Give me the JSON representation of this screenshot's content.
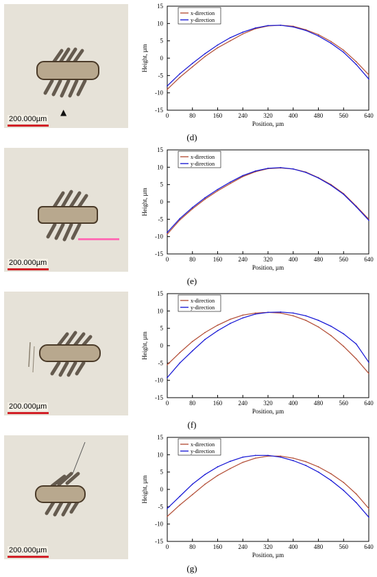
{
  "scale_label": "200.000µm",
  "chart_data": [
    {
      "type": "line",
      "panel": "(d)",
      "xlabel": "Position, µm",
      "ylabel": "Height, µm",
      "xlim": [
        0,
        640
      ],
      "ylim": [
        -15,
        15
      ],
      "xticks": [
        0,
        80,
        160,
        240,
        320,
        400,
        480,
        560,
        640
      ],
      "yticks": [
        15,
        10,
        5,
        0,
        -5,
        -10,
        -15
      ],
      "legend": "top-left",
      "series": [
        {
          "name": "x-direction",
          "color": "#b5533c",
          "x": [
            0,
            40,
            80,
            120,
            160,
            200,
            240,
            280,
            320,
            360,
            400,
            440,
            480,
            520,
            560,
            600,
            640
          ],
          "y": [
            -9.0,
            -5.5,
            -2.5,
            0.5,
            3.0,
            5.0,
            7.0,
            8.5,
            9.3,
            9.5,
            9.2,
            8.2,
            6.8,
            4.8,
            2.3,
            -1.0,
            -4.8
          ]
        },
        {
          "name": "y-direction",
          "color": "#1c1cd6",
          "x": [
            0,
            40,
            80,
            120,
            160,
            200,
            240,
            280,
            320,
            360,
            400,
            440,
            480,
            520,
            560,
            600,
            640
          ],
          "y": [
            -8.0,
            -4.5,
            -1.5,
            1.3,
            3.8,
            5.9,
            7.5,
            8.7,
            9.4,
            9.5,
            9.0,
            8.0,
            6.4,
            4.3,
            1.7,
            -1.8,
            -6.0
          ]
        }
      ]
    },
    {
      "type": "line",
      "panel": "(e)",
      "xlabel": "Position, µm",
      "ylabel": "Height, µm",
      "xlim": [
        0,
        640
      ],
      "ylim": [
        -15,
        15
      ],
      "xticks": [
        0,
        80,
        160,
        240,
        320,
        400,
        480,
        560,
        640
      ],
      "yticks": [
        15,
        10,
        5,
        0,
        -5,
        -10,
        -15
      ],
      "legend": "top-left",
      "series": [
        {
          "name": "x-direction",
          "color": "#b5533c",
          "x": [
            0,
            40,
            80,
            120,
            160,
            200,
            240,
            280,
            320,
            360,
            400,
            440,
            480,
            520,
            560,
            600,
            640
          ],
          "y": [
            -9.3,
            -5.2,
            -2.0,
            0.8,
            3.2,
            5.3,
            7.3,
            8.7,
            9.6,
            9.8,
            9.5,
            8.6,
            7.0,
            5.0,
            2.4,
            -1.2,
            -5.0
          ]
        },
        {
          "name": "y-direction",
          "color": "#1c1cd6",
          "x": [
            0,
            40,
            80,
            120,
            160,
            200,
            240,
            280,
            320,
            360,
            400,
            440,
            480,
            520,
            560,
            600,
            640
          ],
          "y": [
            -8.8,
            -4.8,
            -1.6,
            1.2,
            3.6,
            5.7,
            7.6,
            8.9,
            9.7,
            9.9,
            9.5,
            8.5,
            6.9,
            4.8,
            2.2,
            -1.4,
            -5.3
          ]
        }
      ]
    },
    {
      "type": "line",
      "panel": "(f)",
      "xlabel": "Position, µm",
      "ylabel": "Height, µm",
      "xlim": [
        0,
        640
      ],
      "ylim": [
        -15,
        15
      ],
      "xticks": [
        0,
        80,
        160,
        240,
        320,
        400,
        480,
        560,
        640
      ],
      "yticks": [
        15,
        10,
        5,
        0,
        -5,
        -10,
        -15
      ],
      "legend": "top-left",
      "series": [
        {
          "name": "x-direction",
          "color": "#b5533c",
          "x": [
            0,
            40,
            80,
            120,
            160,
            200,
            240,
            280,
            320,
            360,
            400,
            440,
            480,
            520,
            560,
            600,
            640
          ],
          "y": [
            -5.5,
            -2.0,
            1.2,
            3.8,
            5.9,
            7.6,
            8.8,
            9.4,
            9.6,
            9.4,
            8.6,
            7.3,
            5.4,
            2.9,
            -0.2,
            -3.8,
            -8.0
          ]
        },
        {
          "name": "y-direction",
          "color": "#1c1cd6",
          "x": [
            0,
            40,
            80,
            120,
            160,
            200,
            240,
            280,
            320,
            360,
            400,
            440,
            480,
            520,
            560,
            600,
            640
          ],
          "y": [
            -9.2,
            -5.0,
            -1.5,
            1.8,
            4.3,
            6.4,
            8.0,
            9.1,
            9.6,
            9.7,
            9.4,
            8.6,
            7.3,
            5.6,
            3.4,
            0.5,
            -4.8
          ]
        }
      ]
    },
    {
      "type": "line",
      "panel": "(g)",
      "xlabel": "Position, µm",
      "ylabel": "Height, µm",
      "xlim": [
        0,
        640
      ],
      "ylim": [
        -15,
        15
      ],
      "xticks": [
        0,
        80,
        160,
        240,
        320,
        400,
        480,
        560,
        640
      ],
      "yticks": [
        15,
        10,
        5,
        0,
        -5,
        -10,
        -15
      ],
      "legend": "top-left",
      "series": [
        {
          "name": "x-direction",
          "color": "#b5533c",
          "x": [
            0,
            40,
            80,
            120,
            160,
            200,
            240,
            280,
            320,
            360,
            400,
            440,
            480,
            520,
            560,
            600,
            640
          ],
          "y": [
            -7.8,
            -4.5,
            -1.5,
            1.5,
            4.0,
            6.0,
            7.8,
            9.0,
            9.6,
            9.6,
            9.0,
            8.0,
            6.5,
            4.5,
            2.0,
            -1.3,
            -5.5
          ]
        },
        {
          "name": "y-direction",
          "color": "#1c1cd6",
          "x": [
            0,
            40,
            80,
            120,
            160,
            200,
            240,
            280,
            320,
            360,
            400,
            440,
            480,
            520,
            560,
            600,
            640
          ],
          "y": [
            -5.5,
            -2.0,
            1.5,
            4.3,
            6.5,
            8.1,
            9.3,
            9.8,
            9.8,
            9.3,
            8.3,
            6.9,
            5.0,
            2.6,
            -0.3,
            -3.8,
            -8.0
          ]
        }
      ]
    }
  ]
}
